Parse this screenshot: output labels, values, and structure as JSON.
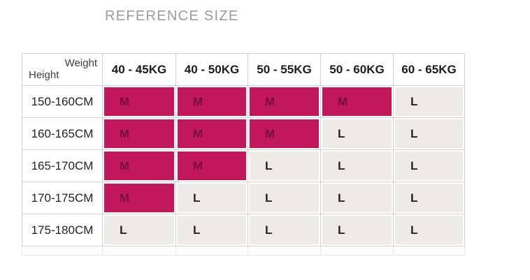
{
  "page": {
    "title": "REFERENCE SIZE",
    "background": "#ffffff"
  },
  "colors": {
    "title_text": "#9b9b9b",
    "header_text": "#1c1c1c",
    "grid_line": "#d3d2ce",
    "highlight_bg": "#c2185b",
    "highlight_text": "#751139",
    "plain_cell_bg": "#edebe7",
    "plain_cell_text": "#252525"
  },
  "table": {
    "corner": {
      "top_label": "Weight",
      "bottom_label": "Height"
    },
    "weight_columns": [
      "40 - 45KG",
      "40 - 50KG",
      "50 - 55KG",
      "50 - 60KG",
      "60 - 65KG"
    ],
    "rows": [
      {
        "height": "150-160CM",
        "sizes": [
          {
            "label": "M",
            "highlight": true
          },
          {
            "label": "M",
            "highlight": true
          },
          {
            "label": "M",
            "highlight": true
          },
          {
            "label": "M",
            "highlight": true
          },
          {
            "label": "L",
            "highlight": false
          }
        ]
      },
      {
        "height": "160-165CM",
        "sizes": [
          {
            "label": "M",
            "highlight": true
          },
          {
            "label": "M",
            "highlight": true
          },
          {
            "label": "M",
            "highlight": true
          },
          {
            "label": "L",
            "highlight": false
          },
          {
            "label": "L",
            "highlight": false
          }
        ]
      },
      {
        "height": "165-170CM",
        "sizes": [
          {
            "label": "M",
            "highlight": true
          },
          {
            "label": "M",
            "highlight": true
          },
          {
            "label": "L",
            "highlight": false
          },
          {
            "label": "L",
            "highlight": false
          },
          {
            "label": "L",
            "highlight": false
          }
        ]
      },
      {
        "height": "170-175CM",
        "sizes": [
          {
            "label": "M",
            "highlight": true
          },
          {
            "label": "L",
            "highlight": false
          },
          {
            "label": "L",
            "highlight": false
          },
          {
            "label": "L",
            "highlight": false
          },
          {
            "label": "L",
            "highlight": false
          }
        ]
      },
      {
        "height": "175-180CM",
        "sizes": [
          {
            "label": "L",
            "highlight": false
          },
          {
            "label": "L",
            "highlight": false
          },
          {
            "label": "L",
            "highlight": false
          },
          {
            "label": "L",
            "highlight": false
          },
          {
            "label": "L",
            "highlight": false
          }
        ]
      }
    ]
  },
  "chart_data": {
    "type": "table",
    "title": "REFERENCE SIZE",
    "column_header_label": "Weight",
    "row_header_label": "Height",
    "columns": [
      "40 - 45KG",
      "40 - 50KG",
      "50 - 55KG",
      "50 - 60KG",
      "60 - 65KG"
    ],
    "rows": [
      "150-160CM",
      "160-165CM",
      "165-170CM",
      "170-175CM",
      "175-180CM"
    ],
    "values": [
      [
        "M",
        "M",
        "M",
        "M",
        "L"
      ],
      [
        "M",
        "M",
        "M",
        "L",
        "L"
      ],
      [
        "M",
        "M",
        "L",
        "L",
        "L"
      ],
      [
        "M",
        "L",
        "L",
        "L",
        "L"
      ],
      [
        "L",
        "L",
        "L",
        "L",
        "L"
      ]
    ],
    "highlighted": [
      [
        true,
        true,
        true,
        true,
        false
      ],
      [
        true,
        true,
        true,
        false,
        false
      ],
      [
        true,
        true,
        false,
        false,
        false
      ],
      [
        true,
        false,
        false,
        false,
        false
      ],
      [
        false,
        false,
        false,
        false,
        false
      ]
    ],
    "highlight_color": "#c2185b"
  }
}
